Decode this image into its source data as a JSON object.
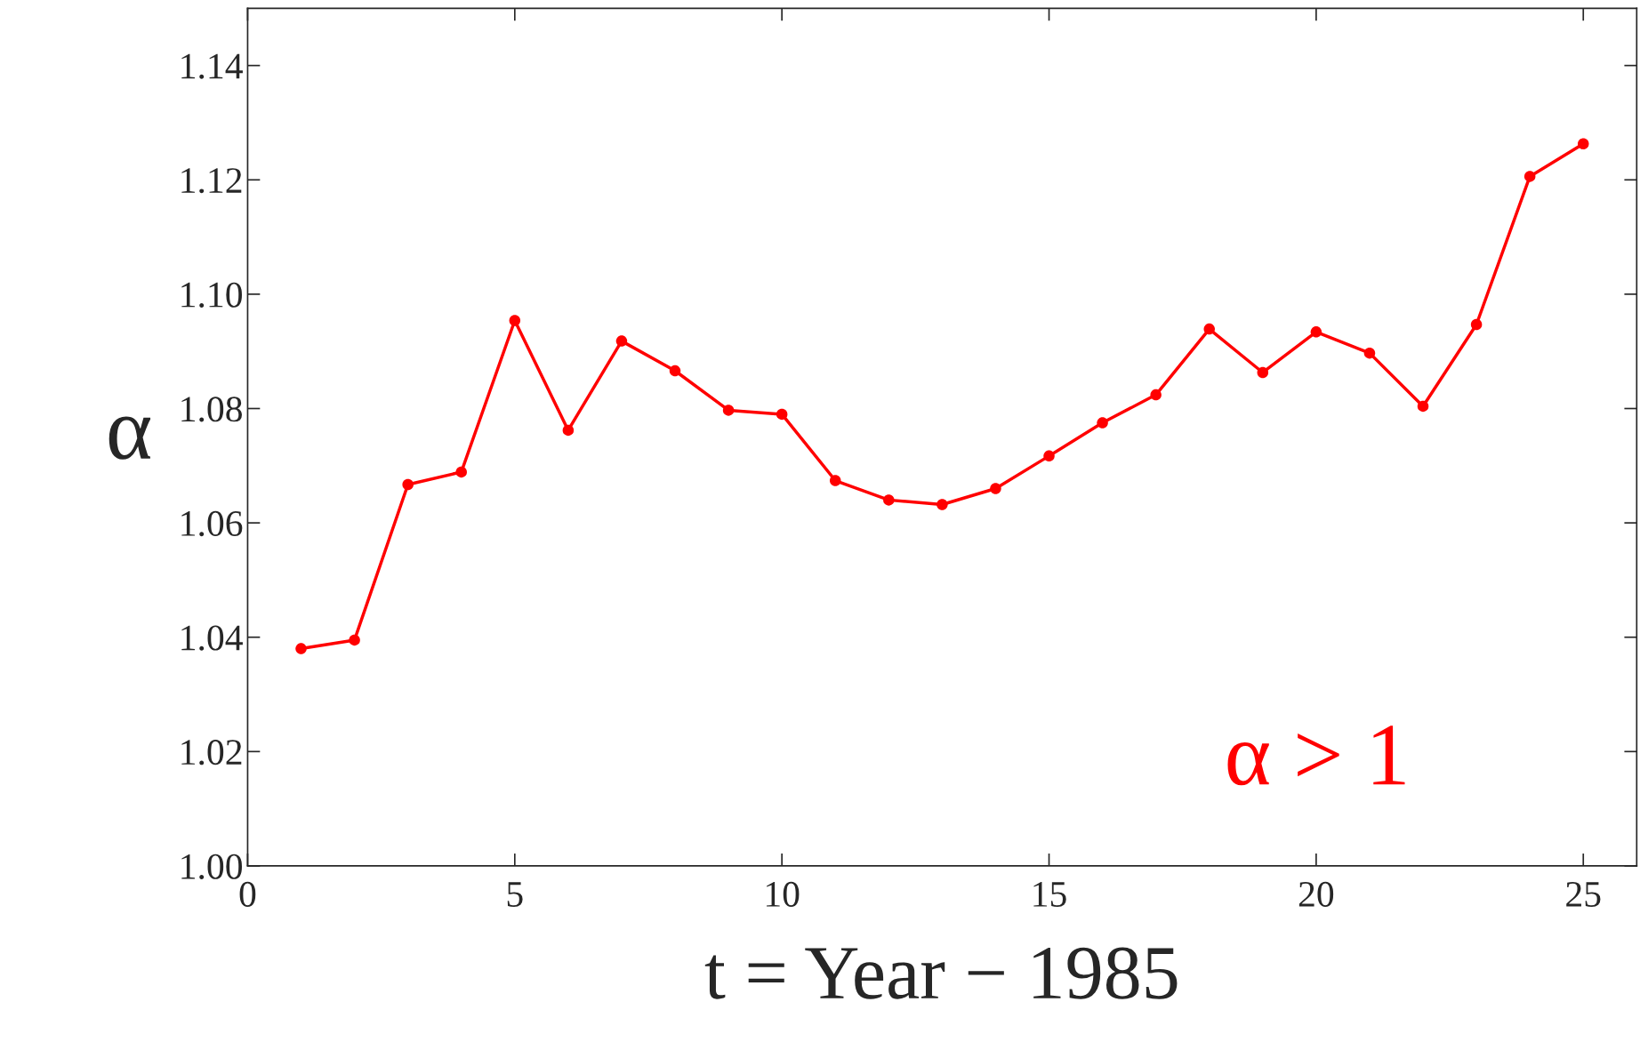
{
  "chart_data": {
    "type": "line",
    "xlabel": "t = Year − 1985",
    "ylabel": "α",
    "x": [
      1,
      2,
      3,
      4,
      5,
      6,
      7,
      8,
      9,
      10,
      11,
      12,
      13,
      14,
      15,
      16,
      17,
      18,
      19,
      20,
      21,
      22,
      23,
      24,
      25
    ],
    "series": [
      {
        "color": "#ff0000",
        "values": [
          1.038,
          1.0395,
          1.0667,
          1.0689,
          1.0954,
          1.0762,
          1.0918,
          1.0866,
          1.0797,
          1.079,
          1.0674,
          1.064,
          1.0632,
          1.066,
          1.0717,
          1.0775,
          1.0824,
          1.0939,
          1.0863,
          1.0934,
          1.0897,
          1.0804,
          1.0947,
          1.1206,
          1.1263
        ]
      }
    ],
    "xlim": [
      0,
      26
    ],
    "xticks": [
      0,
      5,
      10,
      15,
      20,
      25
    ],
    "ylim": [
      1.0,
      1.15
    ],
    "yticks": [
      {
        "value": 1.0,
        "label": "1.00"
      },
      {
        "value": 1.02,
        "label": "1.02"
      },
      {
        "value": 1.04,
        "label": "1.04"
      },
      {
        "value": 1.06,
        "label": "1.06"
      },
      {
        "value": 1.08,
        "label": "1.08"
      },
      {
        "value": 1.1,
        "label": "1.10"
      },
      {
        "value": 1.12,
        "label": "1.12"
      },
      {
        "value": 1.14,
        "label": "1.14"
      }
    ],
    "annotations": [
      "α > 1"
    ],
    "marker": "circle",
    "line_style": "solid",
    "grid": false,
    "legend": false
  }
}
